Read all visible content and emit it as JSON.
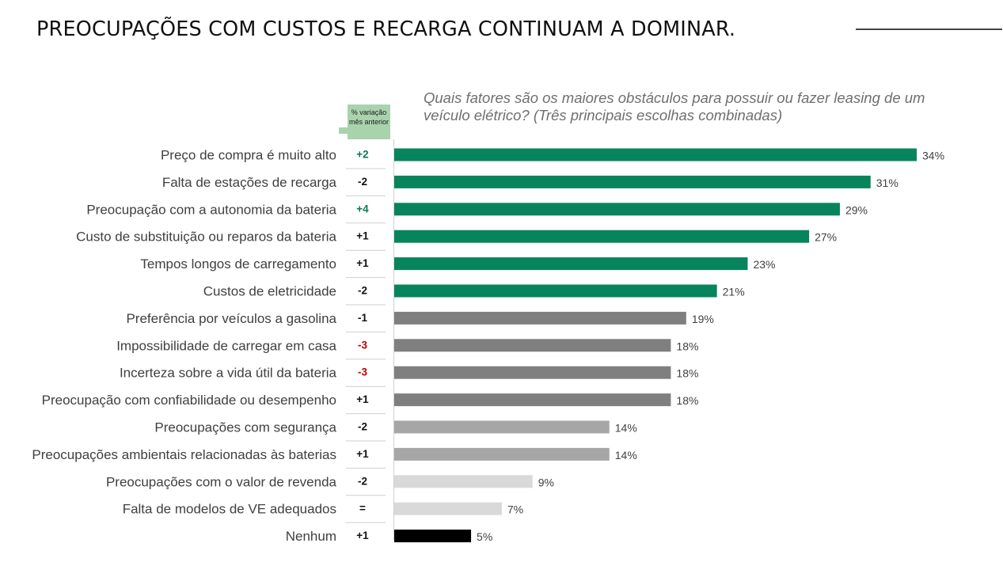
{
  "page": {
    "title": "PREOCUPAÇÕES COM CUSTOS E RECARGA CONTINUAM A DOMINAR.",
    "badge_text": "% variação mês anterior"
  },
  "colors": {
    "dark_green": "#07845c",
    "dark_gray": "#7f7f7f",
    "mid_gray": "#a6a6a6",
    "light_gray": "#d9d9d9",
    "black": "#000000",
    "change_positive": "#0b7a53",
    "change_negative": "#c00000",
    "change_neutral": "#111111"
  },
  "chart_data": {
    "type": "bar",
    "orientation": "horizontal",
    "title": "Quais fatores são os maiores obstáculos para possuir ou fazer leasing de um veículo elétrico? (Três principais escolhas combinadas)",
    "xlim": [
      0,
      34
    ],
    "categories": [
      "Preço de compra é muito alto",
      "Falta de estações de recarga",
      "Preocupação com a autonomia da bateria",
      "Custo de substituição ou reparos da bateria",
      "Tempos longos de carregamento",
      "Custos de eletricidade",
      "Preferência por veículos a gasolina",
      "Impossibilidade de carregar em casa",
      "Incerteza sobre a vida útil da bateria",
      "Preocupação com confiabilidade ou desempenho",
      "Preocupações com segurança",
      "Preocupações ambientais relacionadas às baterias",
      "Preocupações com o valor de revenda",
      "Falta de modelos de VE adequados",
      "Nenhum"
    ],
    "values": [
      34,
      31,
      29,
      27,
      23,
      21,
      19,
      18,
      18,
      18,
      14,
      14,
      9,
      7,
      5
    ],
    "value_labels": [
      "34%",
      "31%",
      "29%",
      "27%",
      "23%",
      "21%",
      "19%",
      "18%",
      "18%",
      "18%",
      "14%",
      "14%",
      "9%",
      "7%",
      "5%"
    ],
    "change_labels": [
      "+2",
      "-2",
      "+4",
      "+1",
      "+1",
      "-2",
      "-1",
      "-3",
      "-3",
      "+1",
      "-2",
      "+1",
      "-2",
      "=",
      "+1"
    ],
    "change_tones": [
      "positive",
      "neutral",
      "positive",
      "neutral",
      "neutral",
      "neutral",
      "neutral",
      "negative",
      "negative",
      "neutral",
      "neutral",
      "neutral",
      "neutral",
      "neutral",
      "neutral"
    ],
    "bar_colors": [
      "dark_green",
      "dark_green",
      "dark_green",
      "dark_green",
      "dark_green",
      "dark_green",
      "dark_gray",
      "dark_gray",
      "dark_gray",
      "dark_gray",
      "mid_gray",
      "mid_gray",
      "light_gray",
      "light_gray",
      "black"
    ]
  }
}
